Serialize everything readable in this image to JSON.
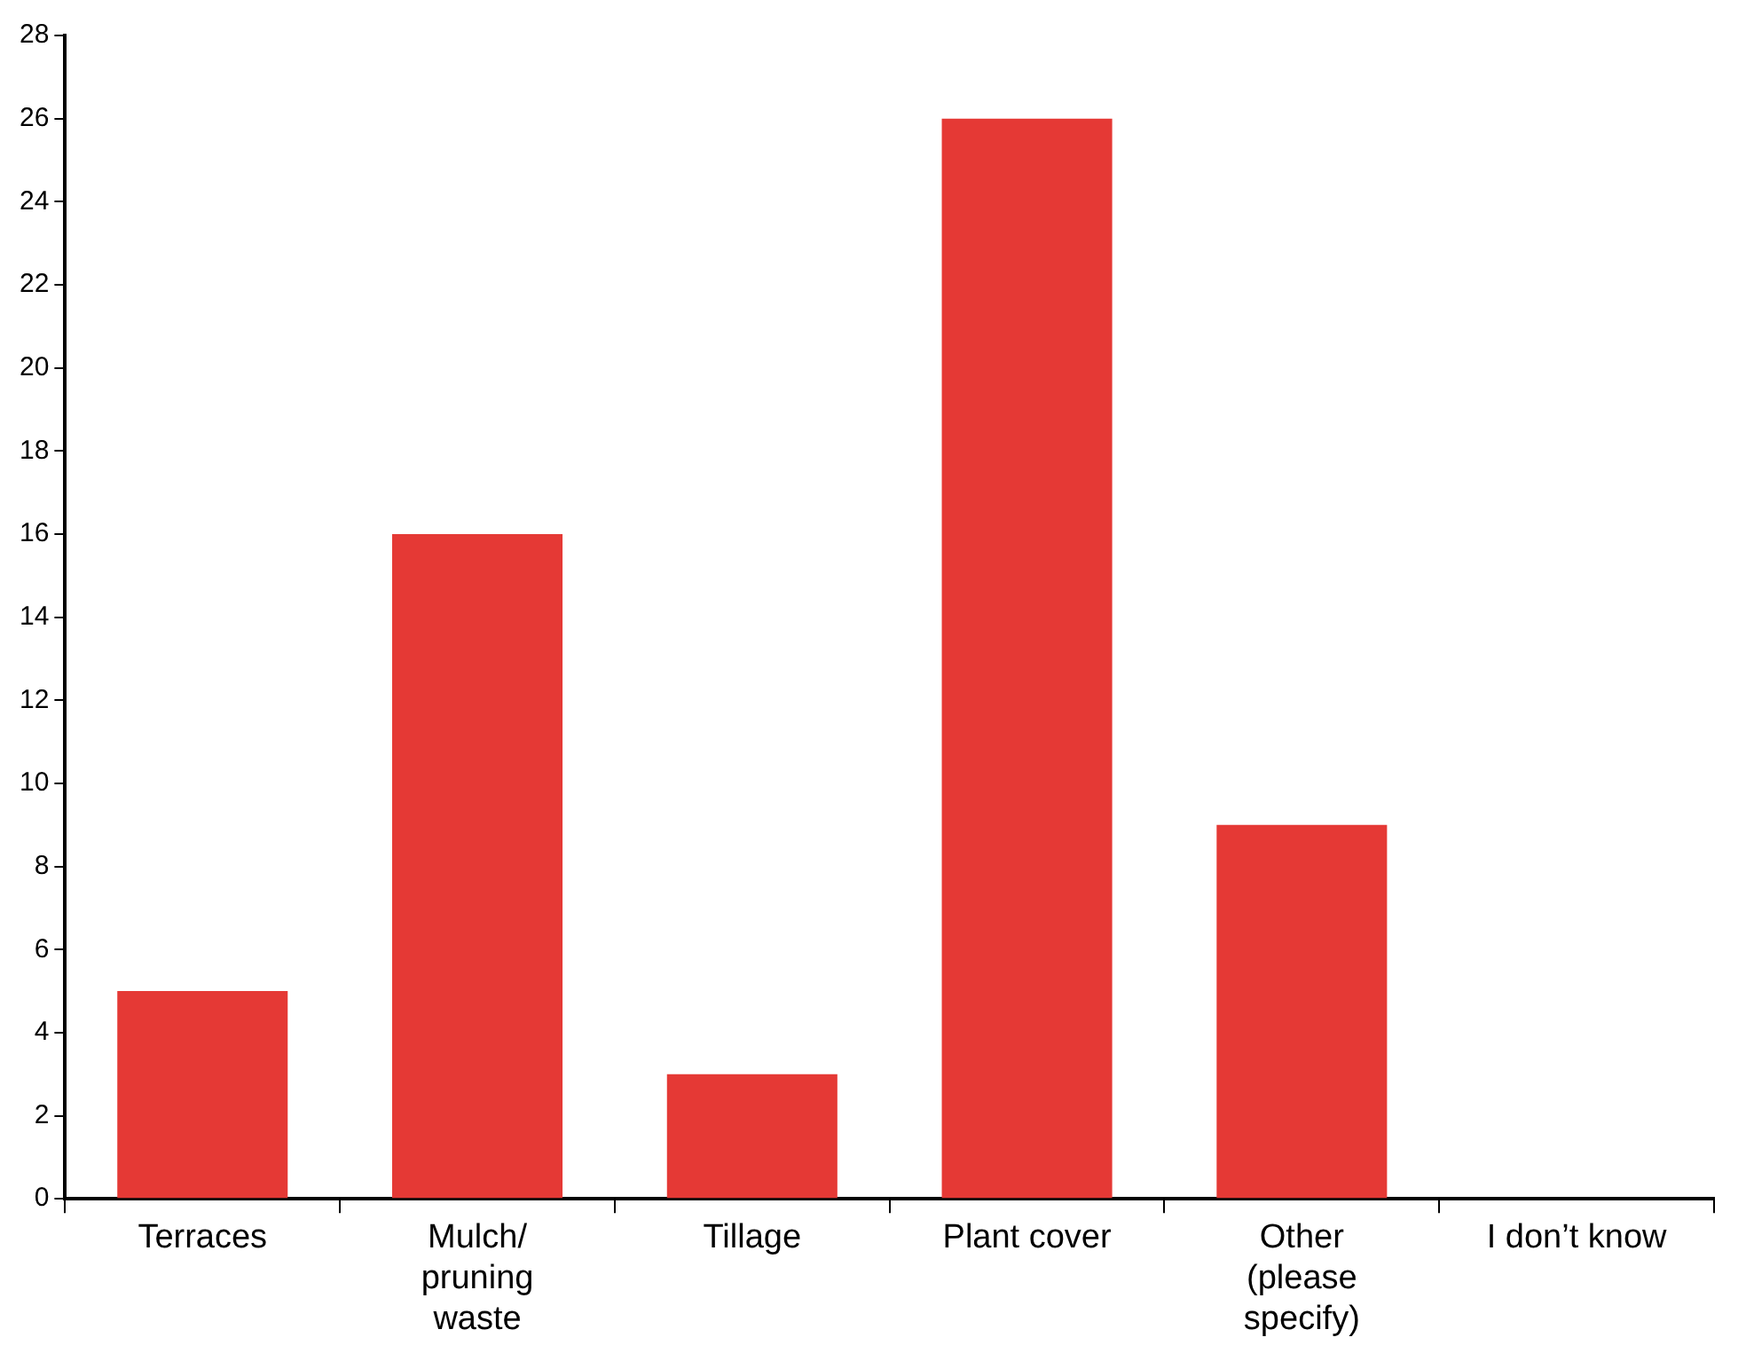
{
  "chart_data": {
    "type": "bar",
    "categories": [
      "Terraces",
      "Mulch/ pruning waste",
      "Tillage",
      "Plant cover",
      "Other (please specify)",
      "I don’t know"
    ],
    "values": [
      5,
      16,
      3,
      26,
      9,
      0
    ],
    "color": "#e53935",
    "ylim": [
      0,
      28
    ],
    "yticks": [
      0,
      2,
      4,
      6,
      8,
      10,
      12,
      14,
      16,
      18,
      20,
      22,
      24,
      26,
      28
    ],
    "grid": false,
    "legend": false
  }
}
